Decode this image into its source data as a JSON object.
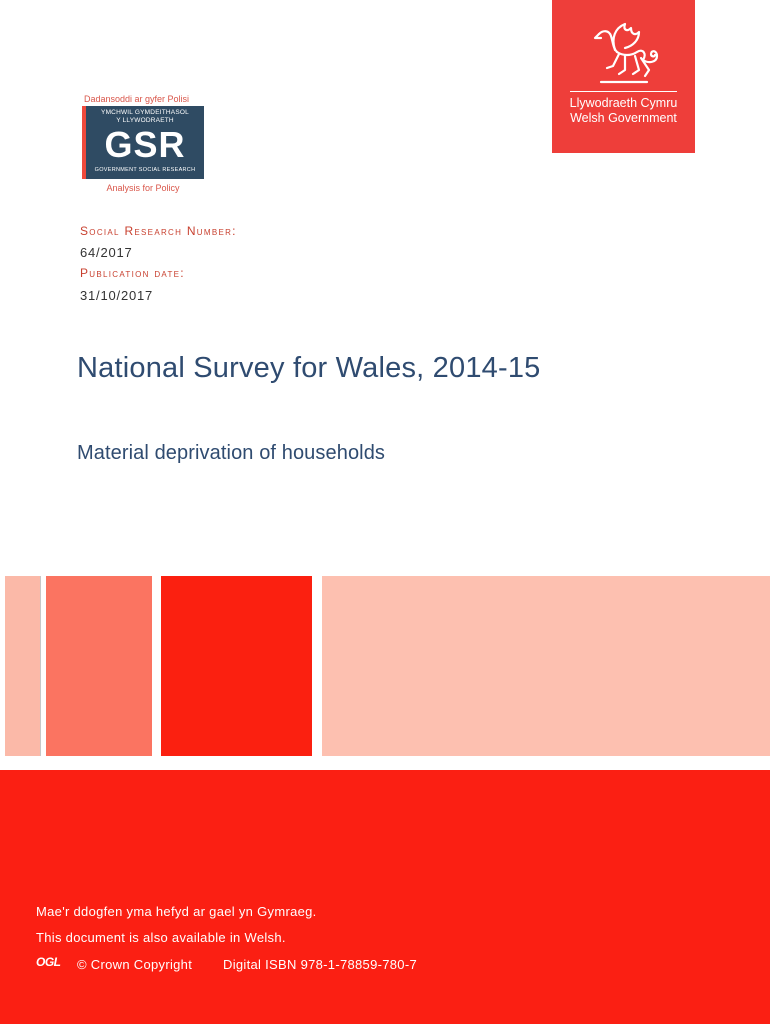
{
  "gsr_logo": {
    "top_text": "Dadansoddi ar gyfer Polisi",
    "welsh_line1": "YMCHWIL GYMDEITHASOL",
    "welsh_line2": "Y LLYWODRAETH",
    "letters": "GSR",
    "english_line": "GOVERNMENT SOCIAL RESEARCH",
    "bottom_text": "Analysis for Policy"
  },
  "wg_logo": {
    "icon": "dragon-icon",
    "name_welsh": "Llywodraeth Cymru",
    "name_english": "Welsh Government",
    "color": "#ee3e3a"
  },
  "meta": {
    "srn_label": "Social Research Number:",
    "srn_value": "64/2017",
    "pub_label": "Publication date:",
    "pub_value": "31/10/2017"
  },
  "title": "National Survey for Wales, 2014-15",
  "subtitle": "Material deprivation of households",
  "colors": {
    "title": "#2f4b70",
    "accent_red": "#fb1f13",
    "block_light": "#fbb9a8",
    "block_mid": "#fb7461",
    "block_strong": "#fb2010",
    "block_pale": "#fdc0b0"
  },
  "footer": {
    "welsh_note": "Mae'r ddogfen yma hefyd ar gael yn Gymraeg.",
    "english_note": "This document is also available in Welsh.",
    "ogl_icon": "ogl-icon",
    "ogl_text": "OGL",
    "copyright": "© Crown Copyright",
    "isbn": "Digital ISBN 978-1-78859-780-7"
  }
}
